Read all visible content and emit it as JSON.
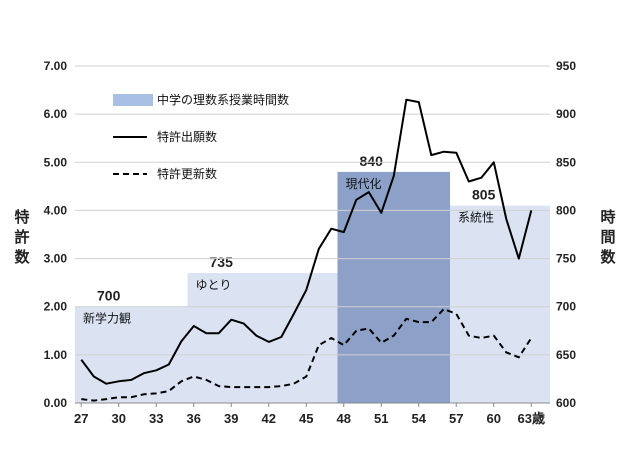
{
  "chart_data": {
    "type": "line",
    "y_left": {
      "label": "特許数",
      "min": 0,
      "max": 7,
      "ticks": [
        "0.00",
        "1.00",
        "2.00",
        "3.00",
        "4.00",
        "5.00",
        "6.00",
        "7.00"
      ]
    },
    "y_right": {
      "label": "時間数",
      "min": 600,
      "max": 950,
      "ticks": [
        "600",
        "650",
        "700",
        "750",
        "800",
        "850",
        "900",
        "950"
      ]
    },
    "x_range": [
      26.5,
      64.5
    ],
    "x_ticks": [
      {
        "v": 27,
        "label": "27"
      },
      {
        "v": 30,
        "label": "30"
      },
      {
        "v": 33,
        "label": "33"
      },
      {
        "v": 36,
        "label": "36"
      },
      {
        "v": 39,
        "label": "39"
      },
      {
        "v": 42,
        "label": "42"
      },
      {
        "v": 45,
        "label": "45"
      },
      {
        "v": 48,
        "label": "48"
      },
      {
        "v": 51,
        "label": "51"
      },
      {
        "v": 54,
        "label": "54"
      },
      {
        "v": 57,
        "label": "57"
      },
      {
        "v": 60,
        "label": "60"
      },
      {
        "v": 63,
        "label": "63歳"
      }
    ],
    "blocks": [
      {
        "x0": 26.5,
        "x1": 35.5,
        "hours": 700,
        "value_label": "700",
        "label": "新学力観",
        "color": "#dbe3f3"
      },
      {
        "x0": 35.5,
        "x1": 47.5,
        "hours": 735,
        "value_label": "735",
        "label": "ゆとり",
        "color": "#dbe3f3"
      },
      {
        "x0": 47.5,
        "x1": 56.5,
        "hours": 840,
        "value_label": "840",
        "label": "現代化",
        "color": "#8da1c8"
      },
      {
        "x0": 56.5,
        "x1": 64.5,
        "hours": 805,
        "value_label": "805",
        "label": "系統性",
        "color": "#dbe3f3"
      }
    ],
    "series": [
      {
        "name": "特許出願数",
        "style": "solid",
        "x": [
          27,
          28,
          29,
          30,
          31,
          32,
          33,
          34,
          35,
          36,
          37,
          38,
          39,
          40,
          41,
          42,
          43,
          44,
          45,
          46,
          47,
          48,
          49,
          50,
          51,
          52,
          53,
          54,
          55,
          56,
          57,
          58,
          59,
          60,
          61,
          62,
          63
        ],
        "y": [
          0.9,
          0.55,
          0.4,
          0.45,
          0.48,
          0.62,
          0.68,
          0.8,
          1.28,
          1.6,
          1.45,
          1.45,
          1.73,
          1.65,
          1.4,
          1.27,
          1.37,
          1.85,
          2.35,
          3.2,
          3.62,
          3.55,
          4.22,
          4.38,
          3.95,
          4.72,
          6.3,
          6.25,
          5.15,
          5.22,
          5.2,
          4.6,
          4.68,
          5.0,
          3.82,
          3.0,
          4.0
        ]
      },
      {
        "name": "特許更新数",
        "style": "dashed",
        "x": [
          27,
          28,
          29,
          30,
          31,
          32,
          33,
          34,
          35,
          36,
          37,
          38,
          39,
          40,
          41,
          42,
          43,
          44,
          45,
          46,
          47,
          48,
          49,
          50,
          51,
          52,
          53,
          54,
          55,
          56,
          57,
          58,
          59,
          60,
          61,
          62,
          63
        ],
        "y": [
          0.08,
          0.05,
          0.08,
          0.12,
          0.12,
          0.18,
          0.2,
          0.25,
          0.45,
          0.55,
          0.48,
          0.35,
          0.33,
          0.33,
          0.33,
          0.33,
          0.35,
          0.4,
          0.55,
          1.2,
          1.35,
          1.2,
          1.5,
          1.55,
          1.25,
          1.4,
          1.75,
          1.68,
          1.68,
          1.95,
          1.85,
          1.4,
          1.35,
          1.4,
          1.05,
          0.95,
          1.35
        ]
      }
    ],
    "legend": [
      {
        "label": "中学の理数系授業時間数",
        "kind": "bar",
        "color": "#a9bfe3"
      },
      {
        "label": "特許出願数",
        "kind": "solid"
      },
      {
        "label": "特許更新数",
        "kind": "dashed"
      }
    ]
  }
}
